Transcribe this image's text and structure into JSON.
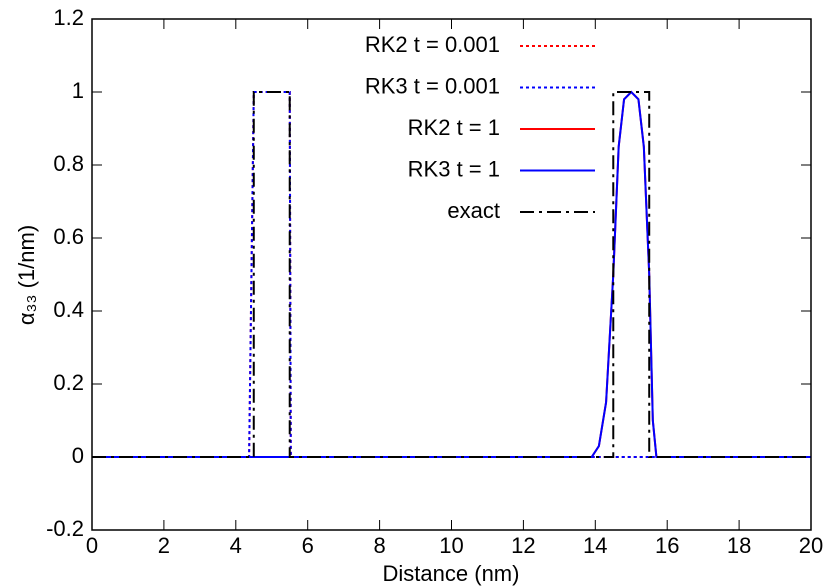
{
  "chart_data": {
    "type": "line",
    "xlabel": "Distance (nm)",
    "ylabel": "α₃₃ (1/nm)",
    "xlim": [
      0,
      20
    ],
    "xticks": [
      0,
      2,
      4,
      6,
      8,
      10,
      12,
      14,
      16,
      18,
      20
    ],
    "ylim": [
      -0.2,
      1.2
    ],
    "yticks": [
      -0.2,
      0,
      0.2,
      0.4,
      0.6,
      0.8,
      1,
      1.2
    ],
    "legend": "top-center",
    "series": [
      {
        "name": "RK2 t = 0.001",
        "color": "#ff0000",
        "style": "dotted",
        "x": [
          0,
          4.37,
          4.5,
          5.5,
          5.53,
          20
        ],
        "values": [
          0,
          0,
          1,
          1,
          0,
          0
        ]
      },
      {
        "name": "RK3 t = 0.001",
        "color": "#0000ff",
        "style": "dotted",
        "x": [
          0,
          4.37,
          4.5,
          5.5,
          5.53,
          20
        ],
        "values": [
          0,
          0,
          1,
          1,
          0,
          0
        ]
      },
      {
        "name": "RK2 t = 1",
        "color": "#ff0000",
        "style": "solid",
        "x": [
          0,
          13.9,
          14.1,
          14.3,
          14.5,
          14.65,
          14.8,
          15,
          15.2,
          15.35,
          15.5,
          15.6,
          15.7,
          20
        ],
        "values": [
          0,
          0,
          0.03,
          0.15,
          0.5,
          0.85,
          0.98,
          1,
          0.98,
          0.85,
          0.5,
          0.1,
          0,
          0
        ]
      },
      {
        "name": "RK3 t = 1",
        "color": "#0000ff",
        "style": "solid",
        "x": [
          0,
          13.9,
          14.1,
          14.3,
          14.5,
          14.65,
          14.8,
          15,
          15.2,
          15.35,
          15.5,
          15.6,
          15.7,
          20
        ],
        "values": [
          0,
          0,
          0.03,
          0.15,
          0.5,
          0.85,
          0.98,
          1,
          0.98,
          0.85,
          0.5,
          0.1,
          0,
          0
        ]
      },
      {
        "name": "exact",
        "color": "#000000",
        "style": "dash-dot",
        "x": [
          0,
          4.5,
          4.5,
          5.5,
          5.5,
          14.5,
          14.5,
          15.5,
          15.5,
          20
        ],
        "values": [
          0,
          0,
          1,
          1,
          0,
          0,
          1,
          1,
          0,
          0
        ]
      }
    ]
  }
}
